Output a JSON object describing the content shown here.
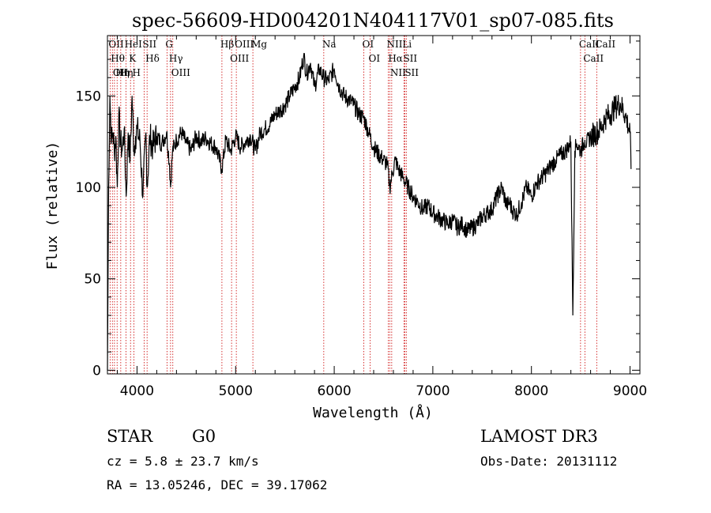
{
  "chart_data": {
    "type": "line",
    "title": "spec-56609-HD004201N404117V01_sp07-085.fits",
    "xlabel": "Wavelength (Å)",
    "ylabel": "Flux (relative)",
    "xlim": [
      3700,
      9100
    ],
    "ylim": [
      -2,
      183
    ],
    "xticks": [
      4000,
      5000,
      6000,
      7000,
      8000,
      9000
    ],
    "yticks": [
      0,
      50,
      100,
      150
    ],
    "series": [
      {
        "name": "spectrum",
        "x": [
          3700,
          3712,
          3725,
          3740,
          3755,
          3770,
          3785,
          3800,
          3815,
          3830,
          3850,
          3870,
          3890,
          3910,
          3930,
          3950,
          3968,
          3985,
          4000,
          4030,
          4060,
          4090,
          4102,
          4130,
          4160,
          4200,
          4250,
          4300,
          4330,
          4340,
          4360,
          4400,
          4450,
          4500,
          4550,
          4600,
          4650,
          4700,
          4750,
          4800,
          4861,
          4900,
          4950,
          5000,
          5050,
          5100,
          5150,
          5200,
          5250,
          5300,
          5350,
          5400,
          5450,
          5500,
          5550,
          5600,
          5650,
          5690,
          5720,
          5760,
          5800,
          5850,
          5890,
          5940,
          6000,
          6050,
          6100,
          6150,
          6200,
          6250,
          6300,
          6350,
          6400,
          6450,
          6500,
          6540,
          6563,
          6590,
          6620,
          6650,
          6700,
          6750,
          6800,
          6850,
          6900,
          6950,
          7000,
          7050,
          7100,
          7150,
          7200,
          7250,
          7300,
          7350,
          7400,
          7450,
          7500,
          7550,
          7600,
          7650,
          7700,
          7750,
          7780,
          7800,
          7850,
          7900,
          7950,
          8000,
          8050,
          8100,
          8150,
          8200,
          8250,
          8300,
          8350,
          8400,
          8420,
          8440,
          8460,
          8500,
          8542,
          8560,
          8600,
          8662,
          8700,
          8750,
          8800,
          8850,
          8900,
          8950,
          9000,
          9010
        ],
        "y": [
          0,
          100,
          150,
          125,
          130,
          120,
          128,
          100,
          140,
          125,
          120,
          132,
          95,
          130,
          115,
          150,
          120,
          128,
          132,
          125,
          95,
          130,
          100,
          128,
          122,
          128,
          124,
          130,
          112,
          100,
          120,
          126,
          130,
          124,
          120,
          128,
          125,
          127,
          124,
          122,
          110,
          126,
          120,
          128,
          122,
          125,
          128,
          120,
          130,
          132,
          135,
          140,
          142,
          145,
          150,
          155,
          160,
          172,
          162,
          168,
          155,
          165,
          160,
          158,
          165,
          155,
          150,
          148,
          145,
          140,
          138,
          130,
          122,
          118,
          115,
          112,
          100,
          108,
          115,
          110,
          105,
          100,
          95,
          92,
          88,
          90,
          86,
          84,
          82,
          80,
          82,
          78,
          80,
          76,
          78,
          80,
          84,
          86,
          88,
          95,
          100,
          90,
          92,
          88,
          85,
          92,
          100,
          95,
          102,
          105,
          108,
          112,
          115,
          118,
          120,
          125,
          30,
          120,
          124,
          120,
          126,
          124,
          128,
          130,
          132,
          138,
          140,
          144,
          146,
          140,
          130,
          110
        ]
      }
    ],
    "spectral_lines": [
      {
        "wave": 3727,
        "label": "OII"
      },
      {
        "wave": 3750,
        "label": "Hθ"
      },
      {
        "wave": 3771,
        "label": "OII"
      },
      {
        "wave": 3798,
        "label": "Hη"
      },
      {
        "wave": 3835,
        "label": "Hη"
      },
      {
        "wave": 3889,
        "label": "HeI"
      },
      {
        "wave": 3934,
        "label": "K"
      },
      {
        "wave": 3968,
        "label": "H"
      },
      {
        "wave": 4072,
        "label": "SII"
      },
      {
        "wave": 4102,
        "label": "Hδ"
      },
      {
        "wave": 4304,
        "label": "G"
      },
      {
        "wave": 4340,
        "label": "Hγ"
      },
      {
        "wave": 4363,
        "label": "OIII"
      },
      {
        "wave": 4861,
        "label": "Hβ"
      },
      {
        "wave": 4959,
        "label": "OIII"
      },
      {
        "wave": 5007,
        "label": "OIII"
      },
      {
        "wave": 5175,
        "label": "Mg"
      },
      {
        "wave": 5894,
        "label": "Na"
      },
      {
        "wave": 6300,
        "label": "OI"
      },
      {
        "wave": 6364,
        "label": "OI"
      },
      {
        "wave": 6548,
        "label": "NII"
      },
      {
        "wave": 6563,
        "label": "Hα"
      },
      {
        "wave": 6583,
        "label": "NII"
      },
      {
        "wave": 6707,
        "label": "Li"
      },
      {
        "wave": 6716,
        "label": "SII"
      },
      {
        "wave": 6731,
        "label": "SII"
      },
      {
        "wave": 8498,
        "label": "CaII"
      },
      {
        "wave": 8542,
        "label": "CaII"
      },
      {
        "wave": 8662,
        "label": "CaII"
      }
    ]
  },
  "info": {
    "class": "STAR",
    "subclass": "G0",
    "survey": "LAMOST DR3",
    "cz": "cz = 5.8 ± 23.7 km/s",
    "obs_date": "Obs-Date: 20131112",
    "coords": "RA =  13.05246, DEC =  39.17062"
  }
}
